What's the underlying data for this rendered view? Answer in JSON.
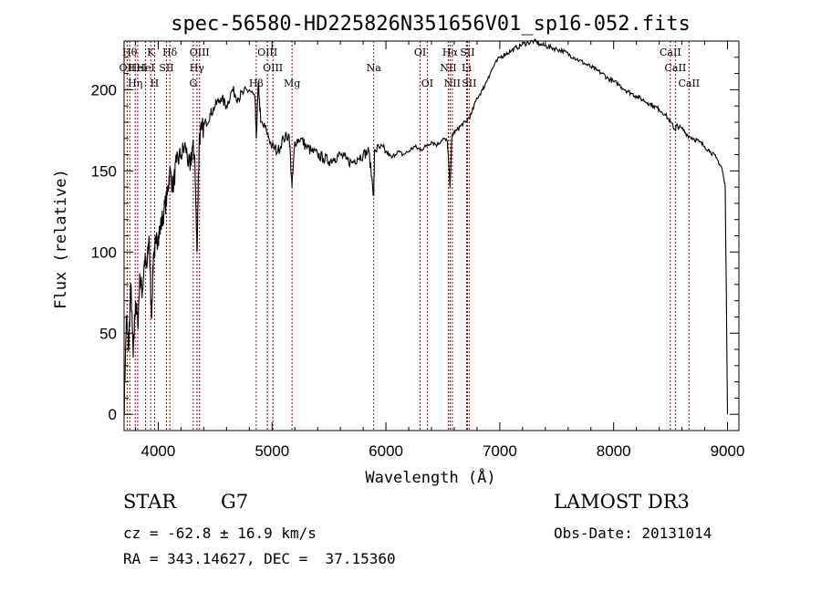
{
  "chart_data": {
    "type": "line",
    "title": "spec-56580-HD225826N351656V01_sp16-052.fits",
    "xlabel": "Wavelength (Å)",
    "ylabel": "Flux (relative)",
    "xlim": [
      3700,
      9100
    ],
    "ylim": [
      -10,
      230
    ],
    "xticks": [
      4000,
      5000,
      6000,
      7000,
      8000,
      9000
    ],
    "yticks": [
      0,
      50,
      100,
      150,
      200
    ],
    "grid": false,
    "legend": "none",
    "line_color": "#000000",
    "marker_color": "#aa0000",
    "series": [
      {
        "x": [
          3700,
          3720,
          3740,
          3760,
          3780,
          3800,
          3820,
          3840,
          3860,
          3880,
          3900,
          3920,
          3940,
          3960,
          3980,
          4000,
          4020,
          4050,
          4080,
          4100,
          4130,
          4160,
          4200,
          4240,
          4280,
          4300,
          4320,
          4340,
          4360,
          4380,
          4420,
          4460,
          4500,
          4550,
          4600,
          4650,
          4700,
          4750,
          4800,
          4850,
          4861,
          4880,
          4900,
          4950,
          5000,
          5050,
          5100,
          5150,
          5175,
          5200,
          5250,
          5300,
          5350,
          5400,
          5450,
          5500,
          5550,
          5600,
          5650,
          5700,
          5750,
          5800,
          5850,
          5893,
          5900,
          5950,
          6000,
          6050,
          6100,
          6150,
          6200,
          6250,
          6300,
          6350,
          6400,
          6450,
          6500,
          6540,
          6563,
          6580,
          6620,
          6660,
          6700,
          6750,
          6800,
          6850,
          6900,
          6950,
          7000,
          7050,
          7100,
          7150,
          7200,
          7250,
          7300,
          7350,
          7400,
          7450,
          7500,
          7550,
          7600,
          7650,
          7700,
          7750,
          7800,
          7850,
          7900,
          7950,
          8000,
          8050,
          8100,
          8150,
          8200,
          8250,
          8300,
          8350,
          8400,
          8450,
          8500,
          8542,
          8550,
          8600,
          8650,
          8700,
          8750,
          8800,
          8850,
          8900,
          8950,
          8980,
          9000
        ],
        "y": [
          0,
          60,
          40,
          80,
          35,
          70,
          55,
          85,
          75,
          95,
          90,
          110,
          60,
          100,
          105,
          110,
          115,
          125,
          135,
          150,
          140,
          155,
          160,
          165,
          150,
          165,
          160,
          100,
          170,
          175,
          180,
          185,
          190,
          195,
          190,
          200,
          195,
          198,
          200,
          195,
          170,
          205,
          180,
          175,
          165,
          162,
          170,
          172,
          140,
          168,
          170,
          165,
          162,
          160,
          158,
          156,
          158,
          160,
          157,
          155,
          158,
          160,
          162,
          135,
          163,
          164,
          162,
          158,
          162,
          160,
          162,
          165,
          163,
          165,
          168,
          166,
          170,
          168,
          140,
          172,
          175,
          178,
          180,
          185,
          195,
          200,
          208,
          215,
          220,
          222,
          224,
          226,
          228,
          229,
          230,
          228,
          227,
          226,
          225,
          224,
          222,
          220,
          218,
          216,
          214,
          212,
          210,
          207,
          205,
          203,
          200,
          198,
          196,
          194,
          192,
          190,
          188,
          185,
          180,
          175,
          178,
          176,
          172,
          170,
          168,
          165,
          162,
          158,
          152,
          140,
          0
        ]
      }
    ],
    "lines": [
      {
        "x": 3727,
        "label": "OII",
        "row": 2
      },
      {
        "x": 3750,
        "label": "Hθ",
        "row": 1
      },
      {
        "x": 3798,
        "label": "Hη",
        "row": 3
      },
      {
        "x": 3820,
        "label": "HeI",
        "row": 2
      },
      {
        "x": 3889,
        "label": "HeI",
        "row": 2
      },
      {
        "x": 3934,
        "label": "K",
        "row": 1
      },
      {
        "x": 3968,
        "label": "H",
        "row": 3
      },
      {
        "x": 4072,
        "label": "SII",
        "row": 2
      },
      {
        "x": 4102,
        "label": "Hδ",
        "row": 1
      },
      {
        "x": 4308,
        "label": "G",
        "row": 3
      },
      {
        "x": 4340,
        "label": "Hγ",
        "row": 2
      },
      {
        "x": 4363,
        "label": "OIII",
        "row": 1
      },
      {
        "x": 4861,
        "label": "Hβ",
        "row": 3
      },
      {
        "x": 4959,
        "label": "OIII",
        "row": 1
      },
      {
        "x": 5007,
        "label": "OIII",
        "row": 2
      },
      {
        "x": 5175,
        "label": "Mg",
        "row": 3
      },
      {
        "x": 5893,
        "label": "Na",
        "row": 2
      },
      {
        "x": 6300,
        "label": "OI",
        "row": 1
      },
      {
        "x": 6363,
        "label": "OI",
        "row": 3
      },
      {
        "x": 6548,
        "label": "NII",
        "row": 2
      },
      {
        "x": 6563,
        "label": "Hα",
        "row": 1
      },
      {
        "x": 6583,
        "label": "NII",
        "row": 3
      },
      {
        "x": 6708,
        "label": "Li",
        "row": 2
      },
      {
        "x": 6716,
        "label": "SII",
        "row": 1
      },
      {
        "x": 6731,
        "label": "SII",
        "row": 3
      },
      {
        "x": 8498,
        "label": "CaII",
        "row": 1
      },
      {
        "x": 8542,
        "label": "CaII",
        "row": 2
      },
      {
        "x": 8662,
        "label": "CaII",
        "row": 3
      }
    ]
  },
  "info": {
    "object_class": "STAR",
    "subclass": "G7",
    "survey": "LAMOST DR3",
    "cz": "cz = -62.8 ± 16.9 km/s",
    "obs_date": "Obs-Date: 20131014",
    "coords": "RA = 343.14627, DEC =  37.15360"
  }
}
